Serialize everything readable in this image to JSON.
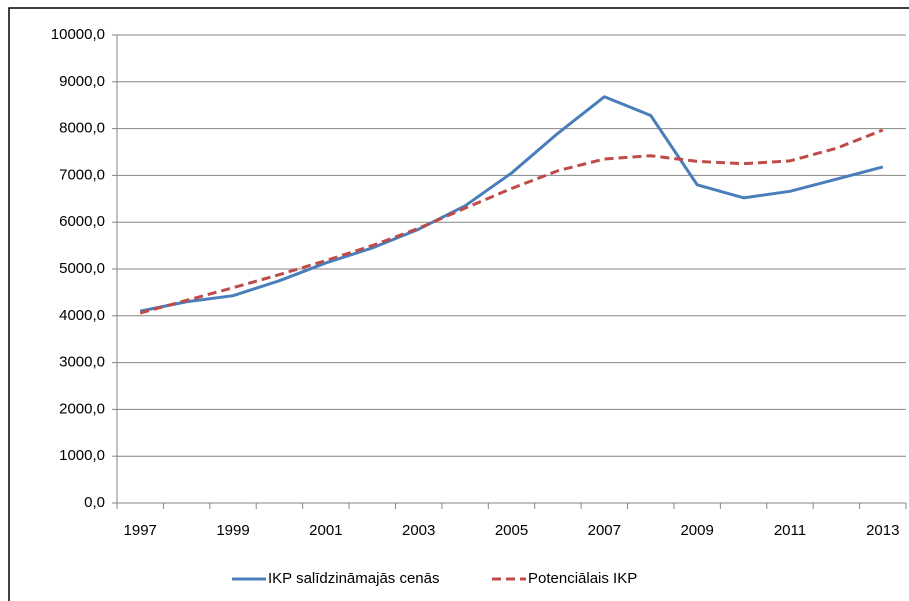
{
  "chart_data": {
    "type": "line",
    "categories": [
      "1997",
      null,
      "1999",
      null,
      "2001",
      null,
      "2003",
      null,
      "2005",
      null,
      "2007",
      null,
      "2009",
      null,
      "2011",
      null,
      "2013"
    ],
    "series": [
      {
        "name": "IKP salīdzināmajās cenās",
        "color": "#4a7ebb",
        "dash": "solid",
        "values": [
          4100,
          4300,
          4430,
          4750,
          5130,
          5450,
          5850,
          6350,
          7050,
          7900,
          8680,
          8280,
          6800,
          6520,
          6660,
          6920,
          7180
        ]
      },
      {
        "name": "Potenciālais IKP",
        "color": "#be4b48",
        "dash": "dashed",
        "values": [
          4060,
          4330,
          4600,
          4880,
          5180,
          5500,
          5870,
          6300,
          6720,
          7100,
          7350,
          7420,
          7300,
          7250,
          7310,
          7580,
          7970
        ]
      }
    ],
    "ylim": [
      0,
      10000
    ],
    "yticks": [
      {
        "value": 0,
        "label": "0,0"
      },
      {
        "value": 1000,
        "label": "1000,0"
      },
      {
        "value": 2000,
        "label": "2000,0"
      },
      {
        "value": 3000,
        "label": "3000,0"
      },
      {
        "value": 4000,
        "label": "4000,0"
      },
      {
        "value": 5000,
        "label": "5000,0"
      },
      {
        "value": 6000,
        "label": "6000,0"
      },
      {
        "value": 7000,
        "label": "7000,0"
      },
      {
        "value": 8000,
        "label": "8000,0"
      },
      {
        "value": 9000,
        "label": "9000,0"
      },
      {
        "value": 10000,
        "label": "10000,0"
      }
    ],
    "grid": true,
    "legend": "bottom"
  }
}
